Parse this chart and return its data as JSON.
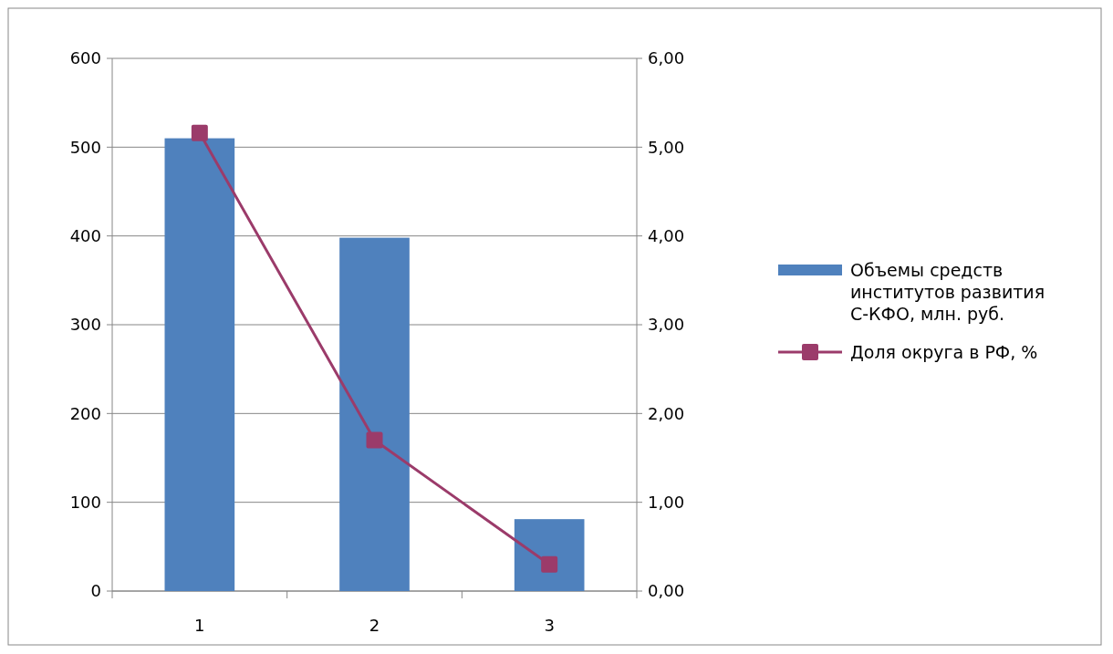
{
  "chart_data": {
    "type": "bar",
    "categories": [
      "1",
      "2",
      "3"
    ],
    "series": [
      {
        "name": "Объемы средств институтов развития С-КФО, млн. руб.",
        "color": "#4f81bd",
        "values": [
          510,
          398,
          81
        ]
      },
      {
        "name": "Доля округа в РФ, %",
        "type": "line",
        "axis": "y2",
        "color": "#9b3b6a",
        "marker": "square",
        "values": [
          5.16,
          1.7,
          0.3
        ]
      }
    ],
    "ylim": [
      0,
      600
    ],
    "yticks": [
      0,
      100,
      200,
      300,
      400,
      500,
      600
    ],
    "y2lim": [
      0,
      6
    ],
    "y2ticks": [
      {
        "value": 0,
        "label": "0,00"
      },
      {
        "value": 1,
        "label": "1,00"
      },
      {
        "value": 2,
        "label": "2,00"
      },
      {
        "value": 3,
        "label": "3,00"
      },
      {
        "value": 4,
        "label": "4,00"
      },
      {
        "value": 5,
        "label": "5,00"
      },
      {
        "value": 6,
        "label": "6,00"
      }
    ],
    "grid": "y",
    "legend": "right"
  }
}
